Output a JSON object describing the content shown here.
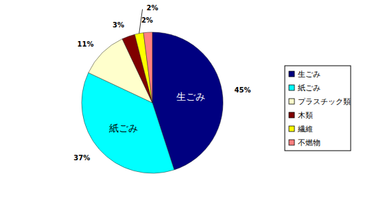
{
  "chart_data": {
    "type": "pie",
    "categories": [
      "生ごみ",
      "紙ごみ",
      "プラスチック類",
      "木類",
      "繊維",
      "不燃物"
    ],
    "values": [
      45,
      37,
      11,
      3,
      2,
      2
    ],
    "value_labels": [
      "45%",
      "37%",
      "11%",
      "3%",
      "2%",
      "2%"
    ],
    "colors": [
      "#000080",
      "#00ffff",
      "#ffffcc",
      "#800000",
      "#ffff00",
      "#ff8080"
    ],
    "data_labels": true,
    "legend": "right"
  }
}
